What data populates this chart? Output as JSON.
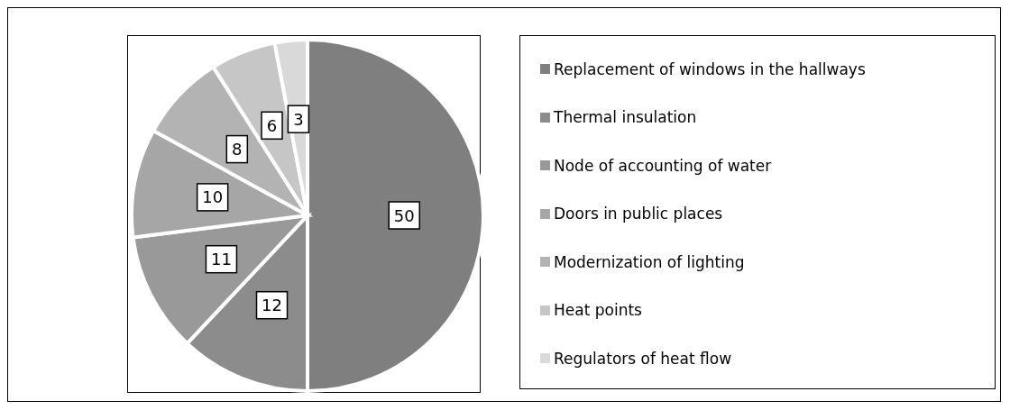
{
  "chart_data": {
    "type": "pie",
    "categories": [
      "Replacement of windows in the hallways",
      "Thermal insulation",
      "Node of accounting of water",
      "Doors in public places",
      "Modernization of lighting",
      "Heat points",
      "Regulators of heat flow"
    ],
    "values": [
      50,
      12,
      11,
      10,
      8,
      6,
      3
    ],
    "colors": [
      "#7f7f7f",
      "#8c8c8c",
      "#999999",
      "#a6a6a6",
      "#b3b3b3",
      "#c6c6c6",
      "#d9d9d9"
    ],
    "data_labels": true,
    "legend": "right"
  }
}
